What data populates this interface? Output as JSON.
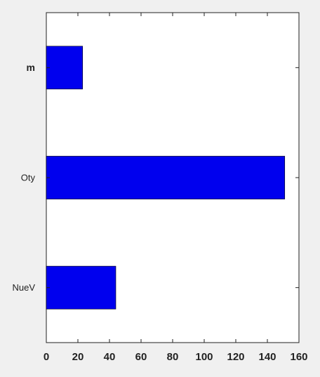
{
  "chart_data": {
    "type": "bar",
    "orientation": "horizontal",
    "categories": [
      "m",
      "Oty",
      "NueV"
    ],
    "values": [
      23,
      151,
      44
    ],
    "xlim": [
      0,
      160
    ],
    "xticks": [
      0,
      20,
      40,
      60,
      80,
      100,
      120,
      140,
      160
    ],
    "xtick_labels": [
      "0",
      "20",
      "40",
      "60",
      "80",
      "100",
      "120",
      "140",
      "160"
    ],
    "bar_color": "#0000ee",
    "plot_background": "#ffffff",
    "page_background": "#f0f0f0",
    "grid": false,
    "legend": "none",
    "title": "",
    "xlabel": "",
    "ylabel": ""
  }
}
